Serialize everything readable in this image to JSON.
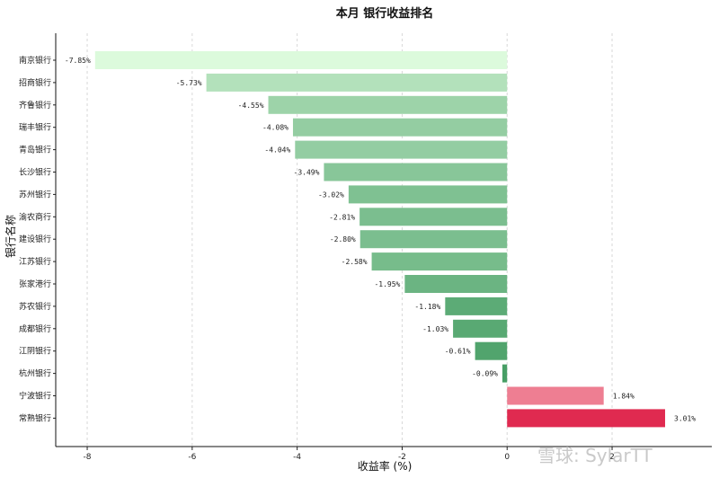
{
  "chart_data": {
    "type": "bar",
    "orientation": "horizontal",
    "title": "本月 银行收益排名",
    "xlabel": "收益率 (%)",
    "ylabel": "银行名称",
    "xlim": [
      -8.6,
      3.9
    ],
    "xticks": [
      -8,
      -6,
      -4,
      -2,
      0,
      2
    ],
    "grid": "x-dashed",
    "categories": [
      "南京银行",
      "招商银行",
      "齐鲁银行",
      "瑞丰银行",
      "青岛银行",
      "长沙银行",
      "苏州银行",
      "渝农商行",
      "建设银行",
      "江苏银行",
      "张家港行",
      "苏农银行",
      "成都银行",
      "江阴银行",
      "杭州银行",
      "宁波银行",
      "常熟银行"
    ],
    "values": [
      -7.85,
      -5.73,
      -4.55,
      -4.08,
      -4.04,
      -3.49,
      -3.02,
      -2.81,
      -2.8,
      -2.58,
      -1.95,
      -1.18,
      -1.03,
      -0.61,
      -0.09,
      1.84,
      3.01
    ],
    "data_labels": [
      "-7.85%",
      "-5.73%",
      "-4.55%",
      "-4.08%",
      "-4.04%",
      "-3.49%",
      "-3.02%",
      "-2.81%",
      "-2.80%",
      "-2.58%",
      "-1.95%",
      "-1.18%",
      "-1.03%",
      "-0.61%",
      "-0.09%",
      "1.84%",
      "3.01%"
    ],
    "colors": {
      "negative_light": "#dcfadc",
      "negative_dark": "#479e65",
      "positive_light": "#ee7e92",
      "positive_dark": "#e02a50"
    }
  },
  "watermark": "雪球: SylarTT"
}
